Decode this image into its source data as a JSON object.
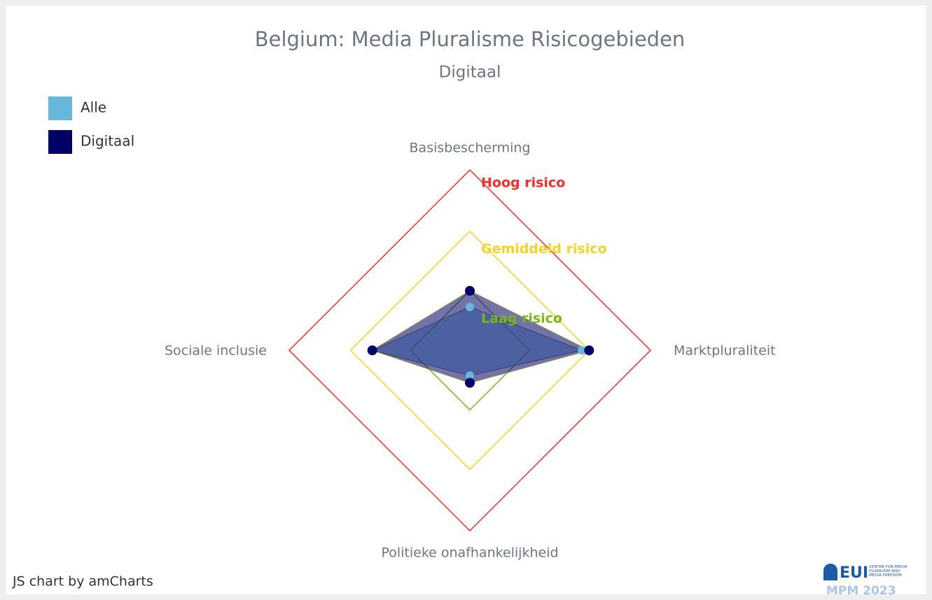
{
  "chart_data": {
    "type": "radar",
    "title": "Belgium: Media Pluralisme Risicogebieden",
    "subtitle": "Digitaal",
    "categories": [
      "Basisbescherming",
      "Marktpluraliteit",
      "Politieke onafhankelijkheid",
      "Sociale inclusie"
    ],
    "rlim": [
      0,
      100
    ],
    "series": [
      {
        "name": "Alle",
        "color": "#67b7dc",
        "values": [
          24,
          62,
          14,
          54
        ]
      },
      {
        "name": "Digitaal",
        "color": "#000066",
        "values": [
          33,
          66,
          18,
          54
        ]
      }
    ],
    "bands": [
      {
        "label": "Laag risico",
        "value": 33,
        "color": "#7cb518"
      },
      {
        "label": "Gemiddeld risico",
        "value": 66,
        "color": "#f5d320"
      },
      {
        "label": "Hoog risico",
        "value": 100,
        "color": "#ff2a2a"
      }
    ],
    "legend": "top-left",
    "credit": "JS chart by amCharts",
    "logo": {
      "name": "EUI",
      "subtitle": "CENTRE FOR MEDIA PLURALISM AND MEDIA FREEDOM",
      "badge": "MPM 2023"
    }
  }
}
